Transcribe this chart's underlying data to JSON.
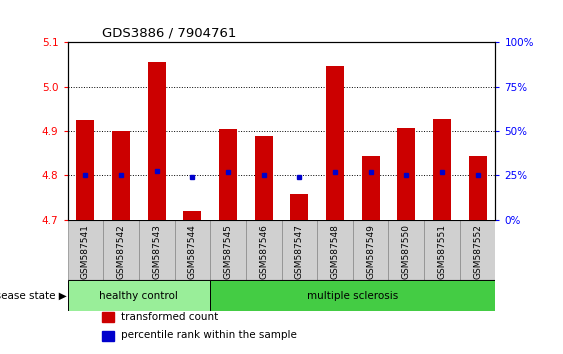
{
  "title": "GDS3886 / 7904761",
  "samples": [
    "GSM587541",
    "GSM587542",
    "GSM587543",
    "GSM587544",
    "GSM587545",
    "GSM587546",
    "GSM587547",
    "GSM587548",
    "GSM587549",
    "GSM587550",
    "GSM587551",
    "GSM587552"
  ],
  "bar_values": [
    4.925,
    4.9,
    5.055,
    4.72,
    4.905,
    4.888,
    4.758,
    5.048,
    4.843,
    4.906,
    4.928,
    4.843
  ],
  "dot_values": [
    4.8,
    4.8,
    4.81,
    4.797,
    4.808,
    4.8,
    4.797,
    4.808,
    4.808,
    4.8,
    4.808,
    4.8
  ],
  "ylim": [
    4.7,
    5.1
  ],
  "yticks_left": [
    4.7,
    4.8,
    4.9,
    5.0,
    5.1
  ],
  "ytick_labels_right": [
    "0%",
    "25%",
    "50%",
    "75%",
    "100%"
  ],
  "right_ytick_vals": [
    4.7,
    4.8,
    4.9,
    5.0,
    5.1
  ],
  "bar_color": "#cc0000",
  "dot_color": "#0000cc",
  "bar_bottom": 4.7,
  "n_healthy": 4,
  "n_total": 12,
  "groups": [
    {
      "label": "healthy control",
      "color": "#99ee99"
    },
    {
      "label": "multiple sclerosis",
      "color": "#44cc44"
    }
  ],
  "disease_state_label": "disease state",
  "legend_items": [
    {
      "color": "#cc0000",
      "label": "transformed count"
    },
    {
      "color": "#0000cc",
      "label": "percentile rank within the sample"
    }
  ],
  "xlabel_bg_color": "#d0d0d0",
  "bar_width": 0.5
}
